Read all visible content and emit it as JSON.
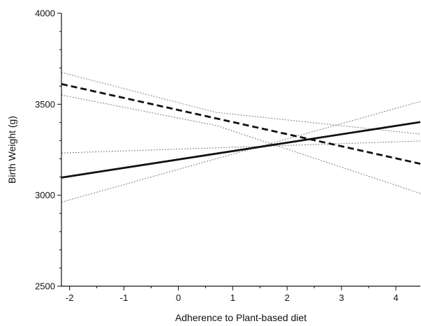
{
  "chart_data": {
    "type": "line",
    "title": "",
    "xlabel": "Adherence to Plant-based diet",
    "ylabel": "Birth Weight (g)",
    "xlim": [
      -2.15,
      4.45
    ],
    "ylim": [
      2500,
      4000
    ],
    "xticks": [
      -2,
      -1,
      0,
      1,
      2,
      3,
      4
    ],
    "yticks": [
      2500,
      3000,
      3500,
      4000
    ],
    "grid": false,
    "series": [
      {
        "style": "solid",
        "color": "#111111",
        "x": [
          -2.15,
          4.45
        ],
        "y": [
          3097,
          3402
        ]
      },
      {
        "style": "dashed",
        "color": "#111111",
        "x": [
          -2.15,
          4.45
        ],
        "y": [
          3611,
          3173
        ]
      },
      {
        "style": "dotted",
        "color": "#888888",
        "x": [
          -2.15,
          4.45
        ],
        "y": [
          2962,
          3515
        ]
      },
      {
        "style": "dotted",
        "color": "#888888",
        "x": [
          -2.15,
          4.45
        ],
        "y": [
          3232,
          3298
        ]
      },
      {
        "style": "dotted",
        "color": "#888888",
        "x": [
          -2.15,
          0.7,
          4.45
        ],
        "y": [
          3675,
          3455,
          3336
        ]
      },
      {
        "style": "dotted",
        "color": "#888888",
        "x": [
          -2.15,
          0.7,
          4.45
        ],
        "y": [
          3551,
          3383,
          3010
        ]
      }
    ]
  }
}
